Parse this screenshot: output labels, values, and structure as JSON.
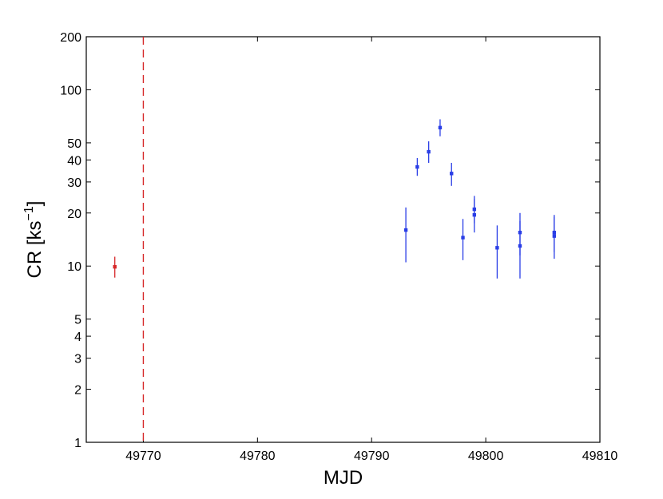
{
  "chart_data": {
    "type": "scatter",
    "title": "",
    "xlabel": "MJD",
    "ylabel": {
      "base": "CR [ks",
      "exponent": "−1",
      "close": "]"
    },
    "xlim": [
      49765,
      49810
    ],
    "ylim": [
      1,
      200
    ],
    "yscale": "log",
    "grid": false,
    "xticks": [
      49770,
      49780,
      49790,
      49800,
      49810
    ],
    "yticks": [
      1,
      2,
      3,
      4,
      5,
      10,
      20,
      30,
      40,
      50,
      100,
      200
    ],
    "vline": {
      "x": 49770,
      "color": "#d62728",
      "style": "dashed"
    },
    "series": [
      {
        "color": "#d62728",
        "points": [
          {
            "x": 49767.5,
            "y": 9.9,
            "ylo": 8.6,
            "yhi": 11.3
          }
        ]
      },
      {
        "color": "#2a3ee6",
        "points": [
          {
            "x": 49793,
            "y": 16.0,
            "ylo": 10.5,
            "yhi": 21.5
          },
          {
            "x": 49794,
            "y": 36.5,
            "ylo": 32.5,
            "yhi": 41.0
          },
          {
            "x": 49795,
            "y": 44.5,
            "ylo": 38.5,
            "yhi": 51.0
          },
          {
            "x": 49796,
            "y": 61.0,
            "ylo": 54.5,
            "yhi": 68.0
          },
          {
            "x": 49797,
            "y": 33.5,
            "ylo": 28.5,
            "yhi": 38.5
          },
          {
            "x": 49798,
            "y": 14.5,
            "ylo": 10.8,
            "yhi": 18.5
          },
          {
            "x": 49799,
            "y": 19.5,
            "ylo": 15.5,
            "yhi": 24.0
          },
          {
            "x": 49799,
            "y": 21.0,
            "ylo": 17.5,
            "yhi": 25.0
          },
          {
            "x": 49801,
            "y": 12.7,
            "ylo": 8.5,
            "yhi": 17.0
          },
          {
            "x": 49803,
            "y": 13.0,
            "ylo": 8.5,
            "yhi": 18.0
          },
          {
            "x": 49803,
            "y": 15.5,
            "ylo": 11.5,
            "yhi": 20.0
          },
          {
            "x": 49806,
            "y": 14.8,
            "ylo": 11.0,
            "yhi": 19.0
          },
          {
            "x": 49806,
            "y": 15.5,
            "ylo": 12.0,
            "yhi": 19.5
          }
        ]
      }
    ]
  }
}
